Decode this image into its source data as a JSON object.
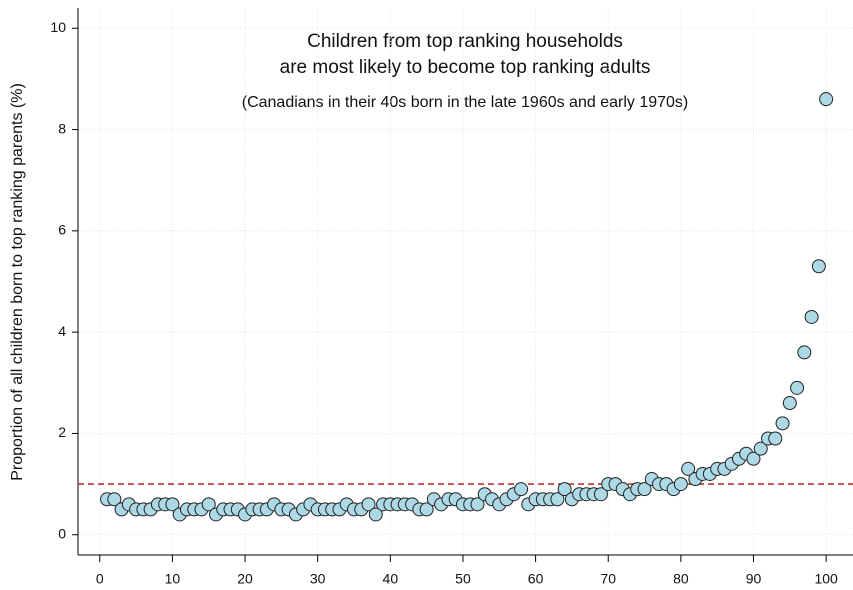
{
  "chart_data": {
    "type": "scatter",
    "title": [
      "Children from top ranking households",
      "are most likely to become top ranking adults"
    ],
    "subtitle": "(Canadians in their 40s born in the late 1960s and early 1970s)",
    "ylabel": "Proportion of all children born to top ranking parents (%)",
    "x": [
      1,
      2,
      3,
      4,
      5,
      6,
      7,
      8,
      9,
      10,
      11,
      12,
      13,
      14,
      15,
      16,
      17,
      18,
      19,
      20,
      21,
      22,
      23,
      24,
      25,
      26,
      27,
      28,
      29,
      30,
      31,
      32,
      33,
      34,
      35,
      36,
      37,
      38,
      39,
      40,
      41,
      42,
      43,
      44,
      45,
      46,
      47,
      48,
      49,
      50,
      51,
      52,
      53,
      54,
      55,
      56,
      57,
      58,
      59,
      60,
      61,
      62,
      63,
      64,
      65,
      66,
      67,
      68,
      69,
      70,
      71,
      72,
      73,
      74,
      75,
      76,
      77,
      78,
      79,
      80,
      81,
      82,
      83,
      84,
      85,
      86,
      87,
      88,
      89,
      90,
      91,
      92,
      93,
      94,
      95,
      96,
      97,
      98,
      99,
      100
    ],
    "values": [
      0.7,
      0.7,
      0.5,
      0.6,
      0.5,
      0.5,
      0.5,
      0.6,
      0.6,
      0.6,
      0.4,
      0.5,
      0.5,
      0.5,
      0.6,
      0.4,
      0.5,
      0.5,
      0.5,
      0.4,
      0.5,
      0.5,
      0.5,
      0.6,
      0.5,
      0.5,
      0.4,
      0.5,
      0.6,
      0.5,
      0.5,
      0.5,
      0.5,
      0.6,
      0.5,
      0.5,
      0.6,
      0.4,
      0.6,
      0.6,
      0.6,
      0.6,
      0.6,
      0.5,
      0.5,
      0.7,
      0.6,
      0.7,
      0.7,
      0.6,
      0.6,
      0.6,
      0.8,
      0.7,
      0.6,
      0.7,
      0.8,
      0.9,
      0.6,
      0.7,
      0.7,
      0.7,
      0.7,
      0.9,
      0.7,
      0.8,
      0.8,
      0.8,
      0.8,
      1.0,
      1.0,
      0.9,
      0.8,
      0.9,
      0.9,
      1.1,
      1.0,
      1.0,
      0.9,
      1.0,
      1.3,
      1.1,
      1.2,
      1.2,
      1.3,
      1.3,
      1.4,
      1.5,
      1.6,
      1.5,
      1.7,
      1.9,
      1.9,
      2.2,
      2.6,
      2.9,
      3.6,
      4.3,
      5.3,
      8.6
    ],
    "color": "#add8e6",
    "hline": 1,
    "hline_color": "#c0302f",
    "xlim": [
      -3,
      103.7
    ],
    "ylim": [
      -0.4,
      10.4
    ],
    "xticks": [
      0,
      10,
      20,
      30,
      40,
      50,
      60,
      70,
      80,
      90,
      100
    ],
    "yticks": [
      0,
      2,
      4,
      6,
      8,
      10
    ],
    "grid": true
  }
}
